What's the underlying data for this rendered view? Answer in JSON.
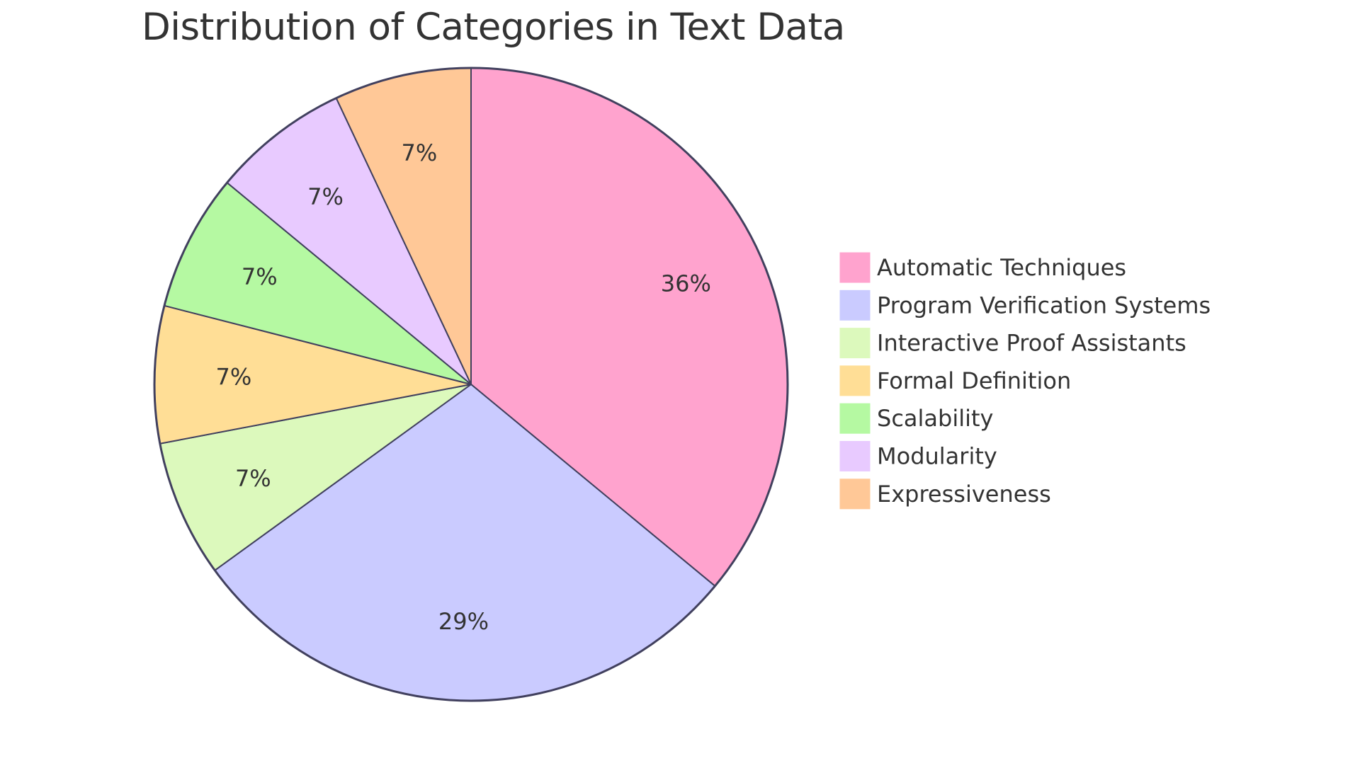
{
  "chart_data": {
    "type": "pie",
    "title": "Distribution of Categories in Text Data",
    "legend_position": "right",
    "slices": [
      {
        "label": "Automatic Techniques",
        "value": 36,
        "display": "36%",
        "color": "#FFA3CE"
      },
      {
        "label": "Program Verification Systems",
        "value": 29,
        "display": "29%",
        "color": "#CACBFF"
      },
      {
        "label": "Interactive Proof Assistants",
        "value": 7,
        "display": "7%",
        "color": "#DCF9BC"
      },
      {
        "label": "Formal Definition",
        "value": 7,
        "display": "7%",
        "color": "#FFDE96"
      },
      {
        "label": "Scalability",
        "value": 7,
        "display": "7%",
        "color": "#B5F9A2"
      },
      {
        "label": "Modularity",
        "value": 7,
        "display": "7%",
        "color": "#E8CAFF"
      },
      {
        "label": "Expressiveness",
        "value": 7,
        "display": "7%",
        "color": "#FFC897"
      }
    ],
    "stroke_color": "#41405E",
    "text_color": "#333333"
  }
}
